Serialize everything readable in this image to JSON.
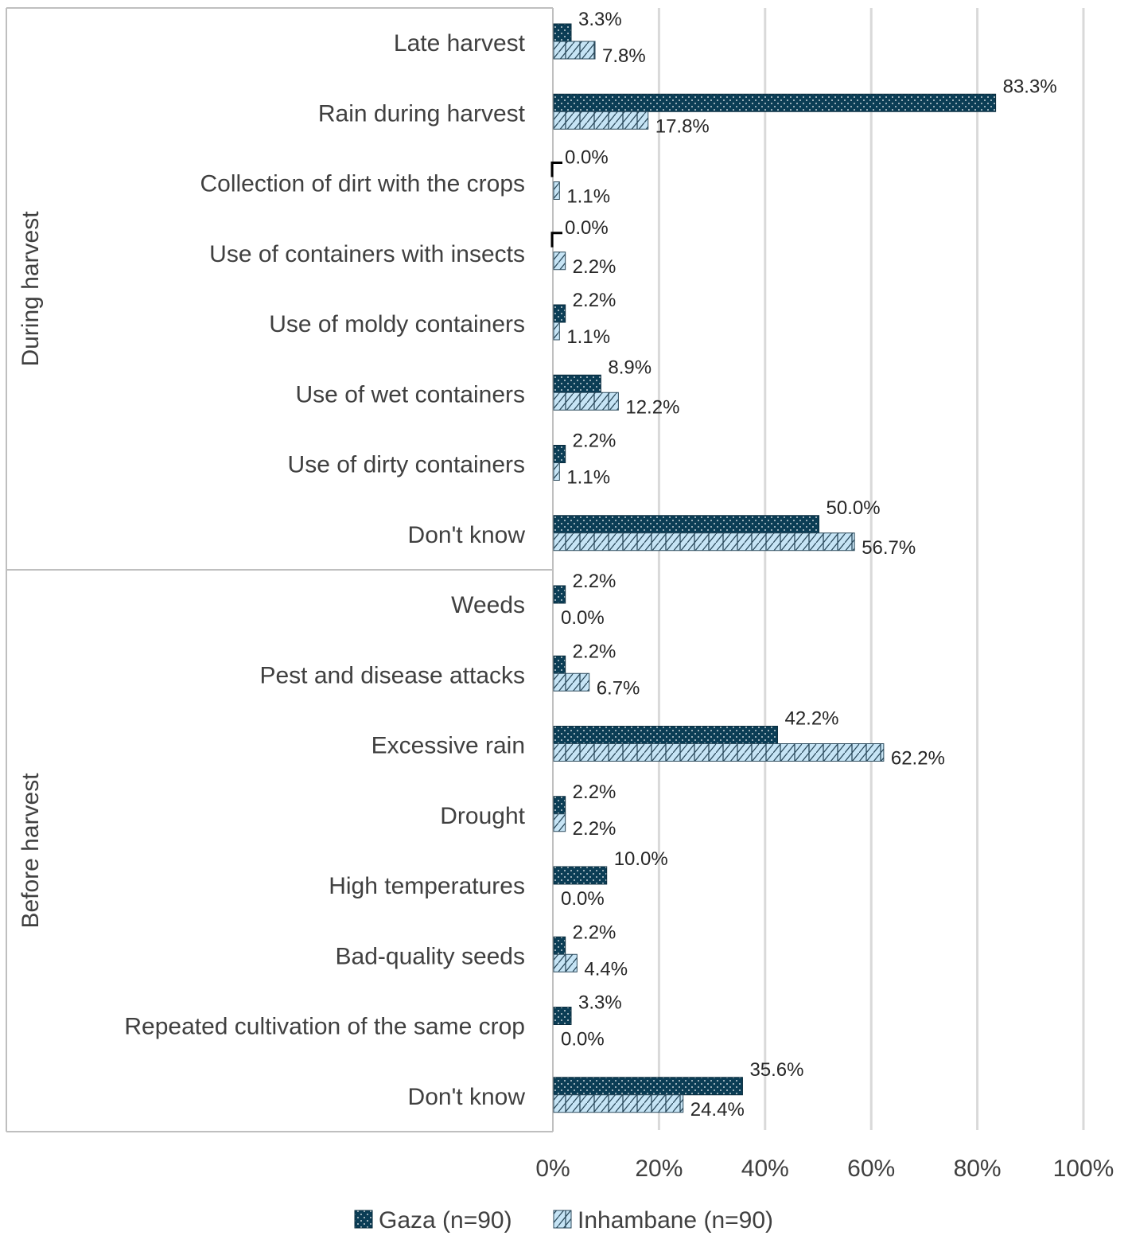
{
  "chart_data": {
    "type": "bar",
    "orientation": "horizontal",
    "title": "",
    "xlabel": "",
    "ylabel": "",
    "xlim": [
      0,
      100
    ],
    "x_ticks": [
      "0%",
      "20%",
      "40%",
      "60%",
      "80%",
      "100%"
    ],
    "grid": true,
    "legend_position": "bottom",
    "groups": [
      {
        "label": "During harvest",
        "categories": [
          "Late harvest",
          "Rain during harvest",
          "Collection of dirt with the crops",
          "Use of containers with insects",
          "Use of moldy containers",
          "Use of wet containers",
          "Use of dirty containers",
          "Don't know"
        ]
      },
      {
        "label": "Before harvest",
        "categories": [
          "Weeds",
          "Pest and disease attacks",
          "Excessive rain",
          "Drought",
          "High temperatures",
          "Bad-quality seeds",
          "Repeated cultivation of the same crop",
          "Don't know"
        ]
      }
    ],
    "series": [
      {
        "name": "Gaza (n=90)",
        "color": "#0b3d55",
        "pattern": "dots",
        "values": [
          3.3,
          83.3,
          0.0,
          0.0,
          2.2,
          8.9,
          2.2,
          50.0,
          2.2,
          2.2,
          42.2,
          2.2,
          10.0,
          2.2,
          3.3,
          35.6
        ],
        "labels": [
          "3.3%",
          "83.3%",
          "0.0%",
          "0.0%",
          "2.2%",
          "8.9%",
          "2.2%",
          "50.0%",
          "2.2%",
          "2.2%",
          "42.2%",
          "2.2%",
          "10.0%",
          "2.2%",
          "3.3%",
          "35.6%"
        ]
      },
      {
        "name": "Inhambane (n=90)",
        "color": "#c6e4f5",
        "pattern": "zigzag",
        "values": [
          7.8,
          17.8,
          1.1,
          2.2,
          1.1,
          12.2,
          1.1,
          56.7,
          0.0,
          6.7,
          62.2,
          2.2,
          0.0,
          4.4,
          0.0,
          24.4
        ],
        "labels": [
          "7.8%",
          "17.8%",
          "1.1%",
          "2.2%",
          "1.1%",
          "12.2%",
          "1.1%",
          "56.7%",
          "0.0%",
          "6.7%",
          "62.2%",
          "2.2%",
          "0.0%",
          "4.4%",
          "0.0%",
          "24.4%"
        ]
      }
    ]
  }
}
